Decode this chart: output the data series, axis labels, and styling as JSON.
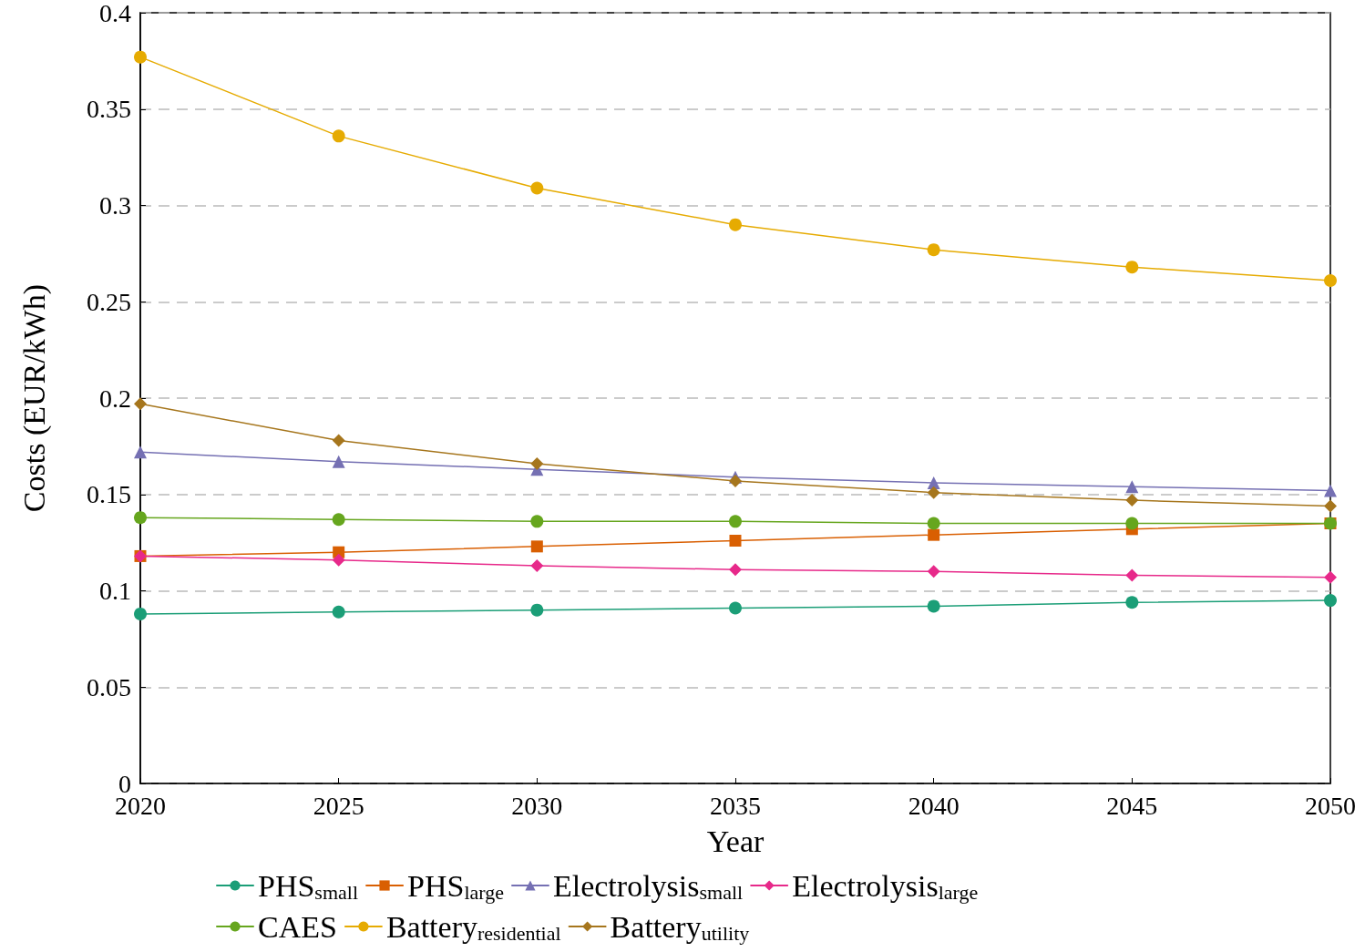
{
  "chart_data": {
    "type": "line",
    "xlabel": "Year",
    "ylabel": "Costs (EUR/kWh)",
    "x": [
      2020,
      2025,
      2030,
      2035,
      2040,
      2045,
      2050
    ],
    "xlim": [
      2020,
      2050
    ],
    "xticks": [
      2020,
      2025,
      2030,
      2035,
      2040,
      2045,
      2050
    ],
    "ylim": [
      0,
      0.4
    ],
    "yticks": [
      0,
      0.05,
      0.1,
      0.15,
      0.2,
      0.25,
      0.3,
      0.35,
      0.4
    ],
    "grid": "y",
    "legend": "bottom",
    "series": [
      {
        "name": "PHS$_{small}$",
        "color": "#1b9e77",
        "marker": "circle",
        "values": [
          0.088,
          0.089,
          0.09,
          0.091,
          0.092,
          0.094,
          0.095
        ]
      },
      {
        "name": "PHS$_{large}$",
        "color": "#d95f02",
        "marker": "square",
        "values": [
          0.118,
          0.12,
          0.123,
          0.126,
          0.129,
          0.132,
          0.135
        ]
      },
      {
        "name": "Electrolysis$_{small}$",
        "color": "#7570b3",
        "marker": "triangle",
        "values": [
          0.172,
          0.167,
          0.163,
          0.159,
          0.156,
          0.154,
          0.152
        ]
      },
      {
        "name": "Electrolysis$_{large}$",
        "color": "#e7298a",
        "marker": "diamond",
        "values": [
          0.118,
          0.116,
          0.113,
          0.111,
          0.11,
          0.108,
          0.107
        ]
      },
      {
        "name": "CAES",
        "color": "#66a61e",
        "marker": "circle",
        "values": [
          0.138,
          0.137,
          0.136,
          0.136,
          0.135,
          0.135,
          0.135
        ]
      },
      {
        "name": "Battery$_{residential}$",
        "color": "#e6ab02",
        "marker": "circle",
        "values": [
          0.377,
          0.336,
          0.309,
          0.29,
          0.277,
          0.268,
          0.261
        ]
      },
      {
        "name": "Battery$_{utility}$",
        "color": "#a6761d",
        "marker": "diamond",
        "values": [
          0.197,
          0.178,
          0.166,
          0.157,
          0.151,
          0.147,
          0.144
        ]
      }
    ]
  }
}
